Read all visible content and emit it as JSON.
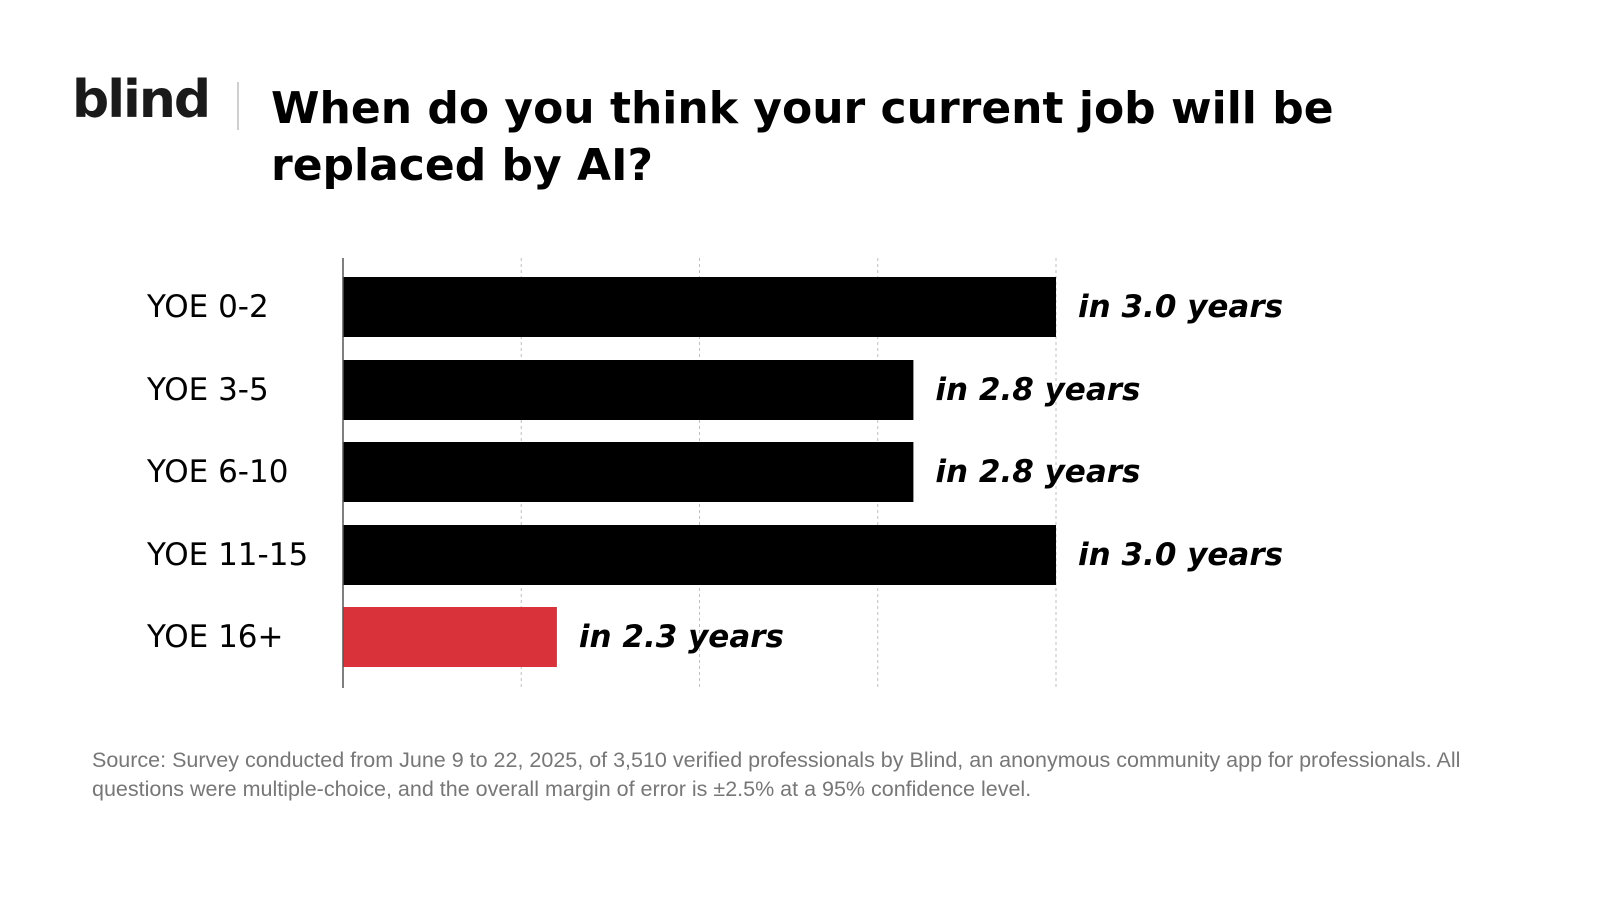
{
  "brand": {
    "name": "blind"
  },
  "chart_data": {
    "type": "bar",
    "orientation": "horizontal",
    "title": "When do you think your current job will be replaced by AI?",
    "categories": [
      "YOE 0-2",
      "YOE 3-5",
      "YOE 6-10",
      "YOE 11-15",
      "YOE 16+"
    ],
    "values": [
      3.0,
      2.8,
      2.8,
      3.0,
      2.3
    ],
    "data_labels": [
      "in 3.0 years",
      "in 2.8 years",
      "in 2.8 years",
      "in 3.0 years",
      "in 2.3 years"
    ],
    "highlight_index": 4,
    "colors": {
      "default": "#000000",
      "highlight": "#d9323a",
      "grid": "#bfbfbf",
      "axis": "#555555"
    },
    "xlim": [
      2.0,
      3.0
    ],
    "grid": true,
    "xlabel": "",
    "ylabel": ""
  },
  "footnote": "Source: Survey conducted from June 9 to 22, 2025, of 3,510 verified professionals by Blind, an anonymous community app for professionals. All questions were multiple-choice, and the overall margin of error is ±2.5% at a 95% confidence level."
}
